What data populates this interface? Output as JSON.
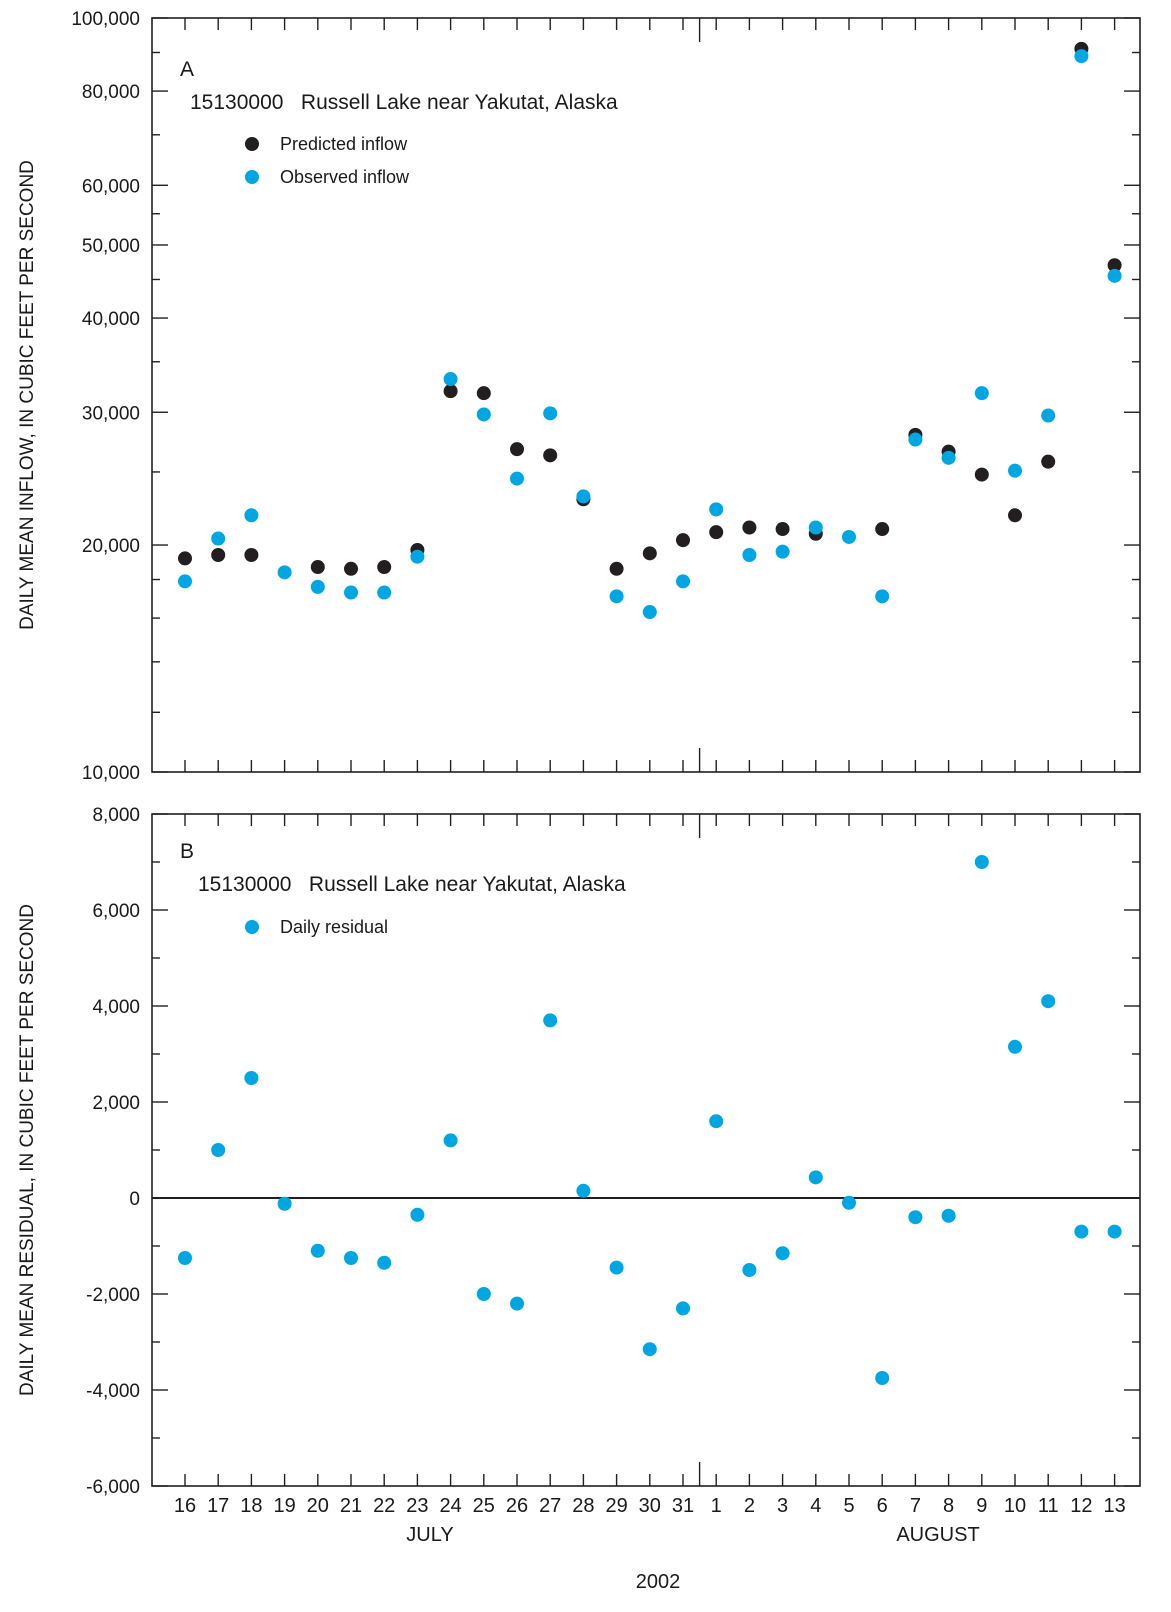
{
  "colors": {
    "predicted": "#231f20",
    "observed": "#00a6e2",
    "axis": "#231f20"
  },
  "x_axis": {
    "day_labels": [
      "16",
      "17",
      "18",
      "19",
      "20",
      "21",
      "22",
      "23",
      "24",
      "25",
      "26",
      "27",
      "28",
      "29",
      "30",
      "31",
      "1",
      "2",
      "3",
      "4",
      "5",
      "6",
      "7",
      "8",
      "9",
      "10",
      "11",
      "12",
      "13"
    ],
    "month_labels": [
      "JULY",
      "AUGUST"
    ],
    "year_label": "2002"
  },
  "chart_data": [
    {
      "type": "scatter",
      "panel_label": "A",
      "title": "15130000   Russell Lake near Yakutat, Alaska",
      "ylabel": "DAILY MEAN INFLOW, IN CUBIC FEET PER SECOND",
      "xlabel": "2002",
      "y_scale": "log",
      "ylim": [
        10000,
        100000
      ],
      "yticks": [
        10000,
        20000,
        30000,
        40000,
        50000,
        60000,
        80000,
        100000
      ],
      "ytick_labels": [
        "10,000",
        "20,000",
        "30,000",
        "40,000",
        "50,000",
        "60,000",
        "80,000",
        "100,000"
      ],
      "x": [
        "2002-07-16",
        "2002-07-17",
        "2002-07-18",
        "2002-07-19",
        "2002-07-20",
        "2002-07-21",
        "2002-07-22",
        "2002-07-23",
        "2002-07-24",
        "2002-07-25",
        "2002-07-26",
        "2002-07-27",
        "2002-07-28",
        "2002-07-29",
        "2002-07-30",
        "2002-07-31",
        "2002-08-01",
        "2002-08-02",
        "2002-08-03",
        "2002-08-04",
        "2002-08-05",
        "2002-08-06",
        "2002-08-07",
        "2002-08-08",
        "2002-08-09",
        "2002-08-10",
        "2002-08-11",
        "2002-08-12",
        "2002-08-13"
      ],
      "series": [
        {
          "name": "Predicted inflow",
          "color": "#231f20",
          "values": [
            19200,
            19400,
            19400,
            null,
            18700,
            18600,
            18700,
            19700,
            32000,
            31800,
            26800,
            26300,
            23000,
            18600,
            19500,
            20300,
            20800,
            21100,
            21000,
            20700,
            null,
            21000,
            28000,
            26600,
            24800,
            21900,
            25800,
            91000,
            47000
          ]
        },
        {
          "name": "Observed inflow",
          "color": "#00a6e2",
          "values": [
            17900,
            20400,
            21900,
            18400,
            17600,
            17300,
            17300,
            19300,
            33200,
            29800,
            24500,
            29900,
            23200,
            17100,
            16300,
            17900,
            22300,
            19400,
            19600,
            21100,
            20500,
            17100,
            27600,
            26100,
            31800,
            25100,
            29700,
            89000,
            45500
          ]
        }
      ],
      "legend_position": "top-left"
    },
    {
      "type": "scatter",
      "panel_label": "B",
      "title": "15130000   Russell Lake near Yakutat, Alaska",
      "ylabel": "DAILY MEAN RESIDUAL, IN CUBIC FEET PER SECOND",
      "xlabel": "2002",
      "ylim": [
        -6000,
        8000
      ],
      "yticks": [
        -6000,
        -4000,
        -2000,
        0,
        2000,
        4000,
        6000,
        8000
      ],
      "ytick_labels": [
        "-6,000",
        "-4,000",
        "-2,000",
        "0",
        "2,000",
        "4,000",
        "6,000",
        "8,000"
      ],
      "x": [
        "2002-07-16",
        "2002-07-17",
        "2002-07-18",
        "2002-07-19",
        "2002-07-20",
        "2002-07-21",
        "2002-07-22",
        "2002-07-23",
        "2002-07-24",
        "2002-07-25",
        "2002-07-26",
        "2002-07-27",
        "2002-07-28",
        "2002-07-29",
        "2002-07-30",
        "2002-07-31",
        "2002-08-01",
        "2002-08-02",
        "2002-08-03",
        "2002-08-04",
        "2002-08-05",
        "2002-08-06",
        "2002-08-07",
        "2002-08-08",
        "2002-08-09",
        "2002-08-10",
        "2002-08-11",
        "2002-08-12",
        "2002-08-13"
      ],
      "series": [
        {
          "name": "Daily residual",
          "color": "#00a6e2",
          "values": [
            -1250,
            1000,
            2500,
            -120,
            -1100,
            -1250,
            -1350,
            -350,
            1200,
            -2000,
            -2200,
            3700,
            150,
            -1450,
            -3150,
            -2300,
            1600,
            -1500,
            -1150,
            430,
            -100,
            -3750,
            -400,
            -370,
            7000,
            3150,
            4100,
            -700,
            -700
          ]
        }
      ],
      "zero_line": true,
      "legend_position": "top-left"
    }
  ]
}
